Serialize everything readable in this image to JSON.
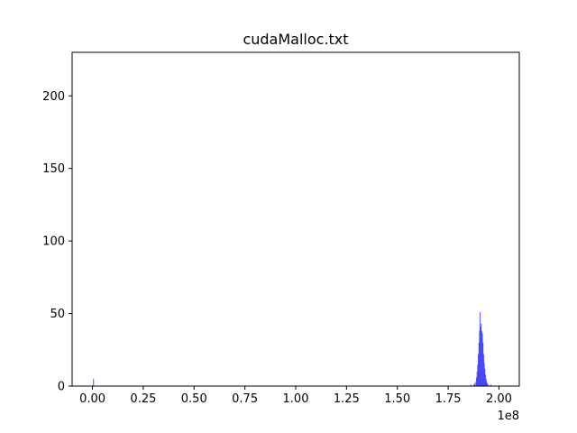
{
  "chart_data": {
    "type": "bar",
    "title": "cudaMalloc.txt",
    "xlabel": "",
    "ylabel": "",
    "x_scale_label": "1e8",
    "xlim": [
      -0.1,
      2.1
    ],
    "ylim": [
      0,
      230
    ],
    "x_ticks": [
      0.0,
      0.25,
      0.5,
      0.75,
      1.0,
      1.25,
      1.5,
      1.75,
      2.0
    ],
    "x_tick_labels": [
      "0.00",
      "0.25",
      "0.50",
      "0.75",
      "1.00",
      "1.25",
      "1.50",
      "1.75",
      "2.00"
    ],
    "y_ticks": [
      0,
      50,
      100,
      150,
      200
    ],
    "y_tick_labels": [
      "0",
      "50",
      "100",
      "150",
      "200"
    ],
    "grid": false,
    "bar_color": "#4444ff",
    "bins": [
      {
        "x": 0.005,
        "y": 5
      },
      {
        "x": 1.862,
        "y": 1
      },
      {
        "x": 1.875,
        "y": 1
      },
      {
        "x": 1.88,
        "y": 2
      },
      {
        "x": 1.886,
        "y": 3
      },
      {
        "x": 1.889,
        "y": 6
      },
      {
        "x": 1.892,
        "y": 10
      },
      {
        "x": 1.895,
        "y": 15
      },
      {
        "x": 1.898,
        "y": 22
      },
      {
        "x": 1.901,
        "y": 30
      },
      {
        "x": 1.904,
        "y": 38
      },
      {
        "x": 1.906,
        "y": 51
      },
      {
        "x": 1.909,
        "y": 41
      },
      {
        "x": 1.912,
        "y": 43
      },
      {
        "x": 1.915,
        "y": 38
      },
      {
        "x": 1.918,
        "y": 36
      },
      {
        "x": 1.921,
        "y": 30
      },
      {
        "x": 1.924,
        "y": 22
      },
      {
        "x": 1.927,
        "y": 16
      },
      {
        "x": 1.93,
        "y": 12
      },
      {
        "x": 1.933,
        "y": 8
      },
      {
        "x": 1.936,
        "y": 5
      },
      {
        "x": 1.939,
        "y": 3
      },
      {
        "x": 1.942,
        "y": 2
      },
      {
        "x": 1.948,
        "y": 1
      },
      {
        "x": 1.96,
        "y": 1
      }
    ]
  }
}
